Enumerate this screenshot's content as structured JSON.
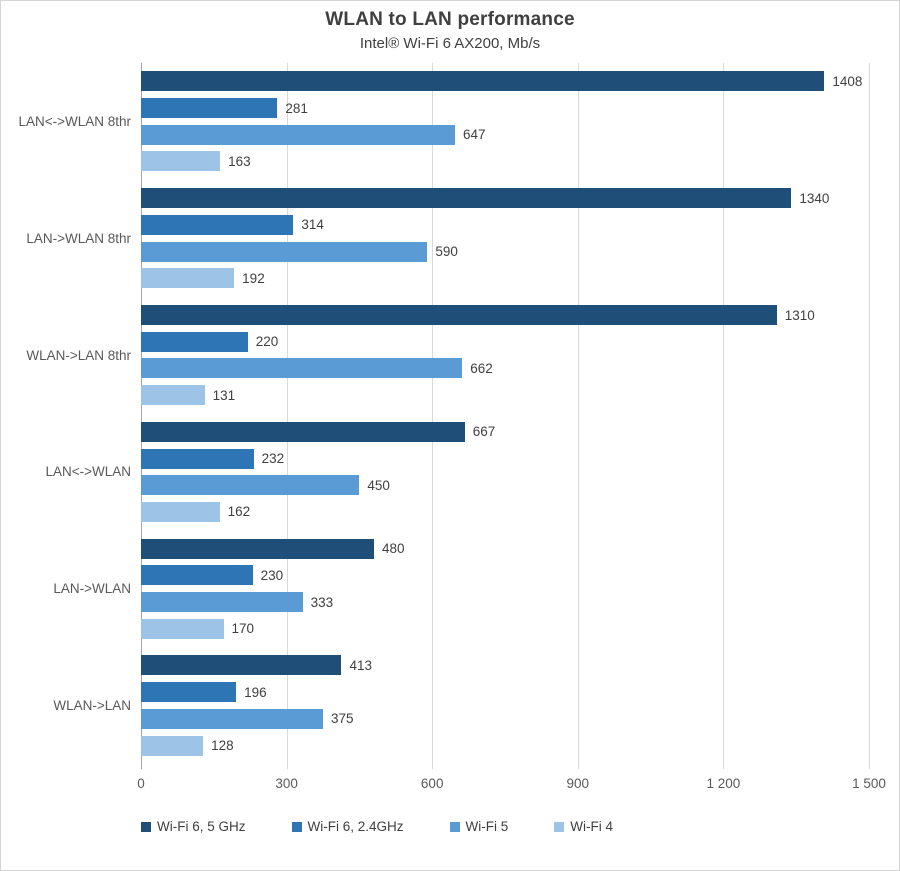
{
  "title": "WLAN to LAN performance",
  "subtitle": "Intel® Wi-Fi 6 AX200, Mb/s",
  "chart_data": {
    "type": "bar",
    "orientation": "horizontal",
    "title": "WLAN to LAN performance",
    "subtitle": "Intel® Wi-Fi 6 AX200, Mb/s",
    "xlabel": "",
    "ylabel": "",
    "xlim": [
      0,
      1500
    ],
    "x_ticks": [
      "0",
      "300",
      "600",
      "900",
      "1 200",
      "1 500"
    ],
    "grid": true,
    "data_labels": true,
    "legend_position": "bottom",
    "categories": [
      "LAN<->WLAN 8thr",
      "LAN->WLAN 8thr",
      "WLAN->LAN 8thr",
      "LAN<->WLAN",
      "LAN->WLAN",
      "WLAN->LAN"
    ],
    "series": [
      {
        "name": "Wi-Fi 6, 5 GHz",
        "color": "#1F4E79",
        "values": [
          1408,
          1340,
          1310,
          667,
          480,
          413
        ]
      },
      {
        "name": "Wi-Fi 6, 2.4GHz",
        "color": "#2E75B6",
        "values": [
          281,
          314,
          220,
          232,
          230,
          196
        ]
      },
      {
        "name": "Wi-Fi 5",
        "color": "#5B9BD5",
        "values": [
          647,
          590,
          662,
          450,
          333,
          375
        ]
      },
      {
        "name": "Wi-Fi 4",
        "color": "#9DC3E6",
        "values": [
          163,
          192,
          131,
          162,
          170,
          128
        ]
      }
    ],
    "colors": {
      "grid_line": "#D9D9D9",
      "axis_line": "#A6A6A6",
      "title_text": "#404040",
      "label_text": "#595959",
      "value_text": "#404040"
    }
  }
}
